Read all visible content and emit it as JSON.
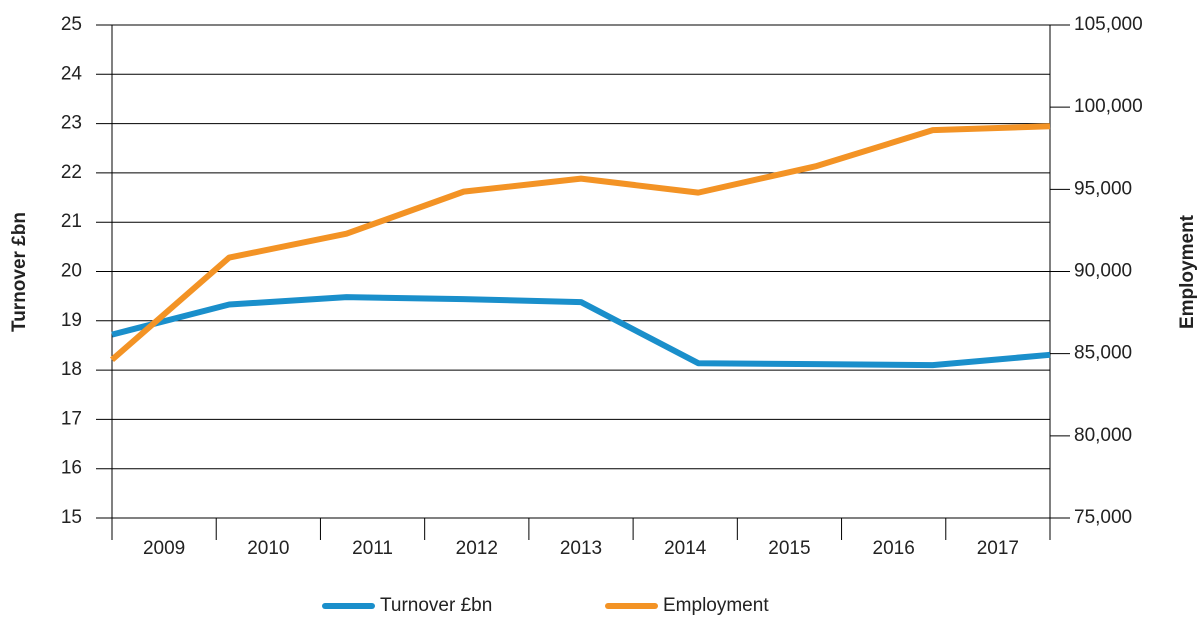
{
  "chart_data": {
    "type": "line",
    "categories": [
      "2009",
      "2010",
      "2011",
      "2012",
      "2013",
      "2014",
      "2015",
      "2016",
      "2017"
    ],
    "y_label": "Turnover £bn",
    "y2_label": "Employment",
    "series": [
      {
        "name": "Turnover £bn",
        "color": "#1a8fcb",
        "values": [
          18.72,
          19.33,
          19.48,
          19.44,
          19.38,
          18.14,
          18.12,
          18.1,
          18.31
        ]
      },
      {
        "name": "Employment",
        "color": "#f39325",
        "axis": "y2",
        "values": [
          84630,
          90850,
          92300,
          94860,
          95650,
          94800,
          96400,
          98600,
          98840
        ]
      }
    ],
    "ylim": [
      15,
      25
    ],
    "yticks": [
      15,
      16,
      17,
      18,
      19,
      20,
      21,
      22,
      23,
      24,
      25
    ],
    "y2lim": [
      75000,
      105000
    ],
    "y2ticks": [
      {
        "value": 75000,
        "label": "75,000"
      },
      {
        "value": 80000,
        "label": "80,000"
      },
      {
        "value": 85000,
        "label": "85,000"
      },
      {
        "value": 90000,
        "label": "90,000"
      },
      {
        "value": 95000,
        "label": "95,000"
      },
      {
        "value": 100000,
        "label": "100,000"
      },
      {
        "value": 105000,
        "label": "105,000"
      }
    ],
    "grid": true,
    "legend": "bottom"
  }
}
